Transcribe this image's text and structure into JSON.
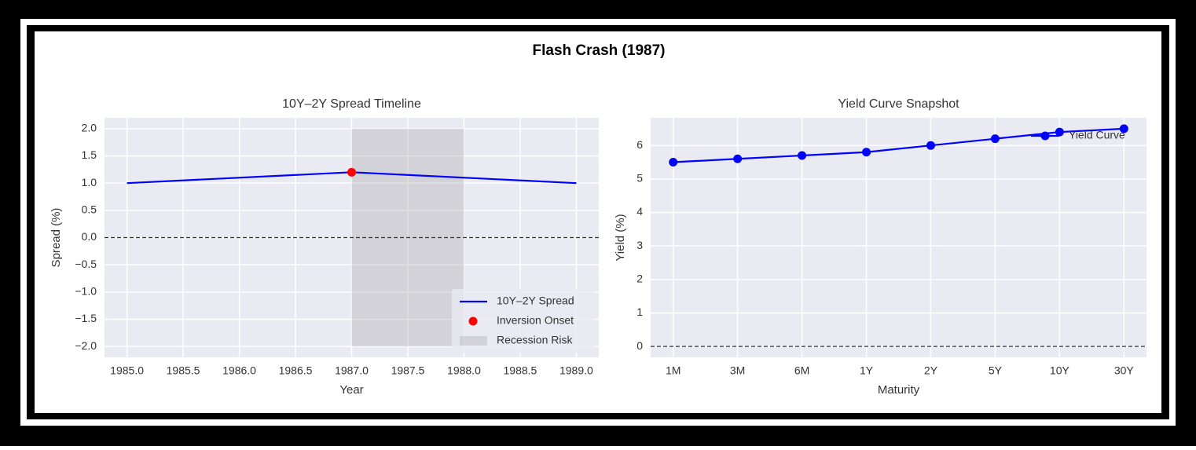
{
  "title": "Flash Crash (1987)",
  "chart_data": [
    {
      "type": "line",
      "title": "10Y–2Y Spread Timeline",
      "x_label": "Year",
      "y_label": "Spread (%)",
      "x": [
        1985,
        1987,
        1989
      ],
      "series": [
        {
          "name": "10Y–2Y Spread",
          "color": "#0000ff",
          "values": [
            1.0,
            1.2,
            1.0
          ]
        }
      ],
      "points": {
        "name": "Inversion Onset",
        "color": "#ff0000",
        "x": [
          1987
        ],
        "values": [
          1.2
        ]
      },
      "span": {
        "name": "Recession Risk",
        "color": "#9a9a9a",
        "x": [
          1987,
          1988
        ],
        "values": [
          -2,
          2
        ]
      },
      "hline": 0,
      "xlim": [
        1984.8,
        1989.2
      ],
      "xticks": [
        {
          "value": 1985,
          "label": "1985.0"
        },
        1985.5,
        {
          "value": 1986,
          "label": "1986.0"
        },
        1986.5,
        {
          "value": 1987,
          "label": "1987.0"
        },
        1987.5,
        {
          "value": 1988,
          "label": "1988.0"
        },
        1988.5,
        {
          "value": 1989,
          "label": "1989.0"
        }
      ],
      "ylim": [
        -2.2,
        2.2
      ],
      "yticks": [
        {
          "value": 2,
          "label": "2.0"
        },
        1.5,
        {
          "value": 1,
          "label": "1.0"
        },
        0.5,
        {
          "value": 0,
          "label": "0.0"
        },
        {
          "value": -0.5,
          "label": "−0.5"
        },
        {
          "value": -1,
          "label": "−1.0"
        },
        {
          "value": -1.5,
          "label": "−1.5"
        },
        {
          "value": -2,
          "label": "−2.0"
        }
      ],
      "grid": true,
      "legend": "lower right"
    },
    {
      "type": "line",
      "title": "Yield Curve Snapshot",
      "x_label": "Maturity",
      "y_label": "Yield (%)",
      "categories": [
        "1M",
        "3M",
        "6M",
        "1Y",
        "2Y",
        "5Y",
        "10Y",
        "30Y"
      ],
      "series": [
        {
          "name": "Yield Curve",
          "color": "#0000ff",
          "values": [
            5.5,
            5.6,
            5.7,
            5.8,
            6.0,
            6.2,
            6.4,
            6.5
          ],
          "marker": true
        }
      ],
      "hline": 0,
      "ylim": [
        -0.325,
        6.825
      ],
      "yticks": [
        0,
        1,
        2,
        3,
        4,
        5,
        6
      ],
      "grid": true,
      "legend": "upper right"
    }
  ]
}
